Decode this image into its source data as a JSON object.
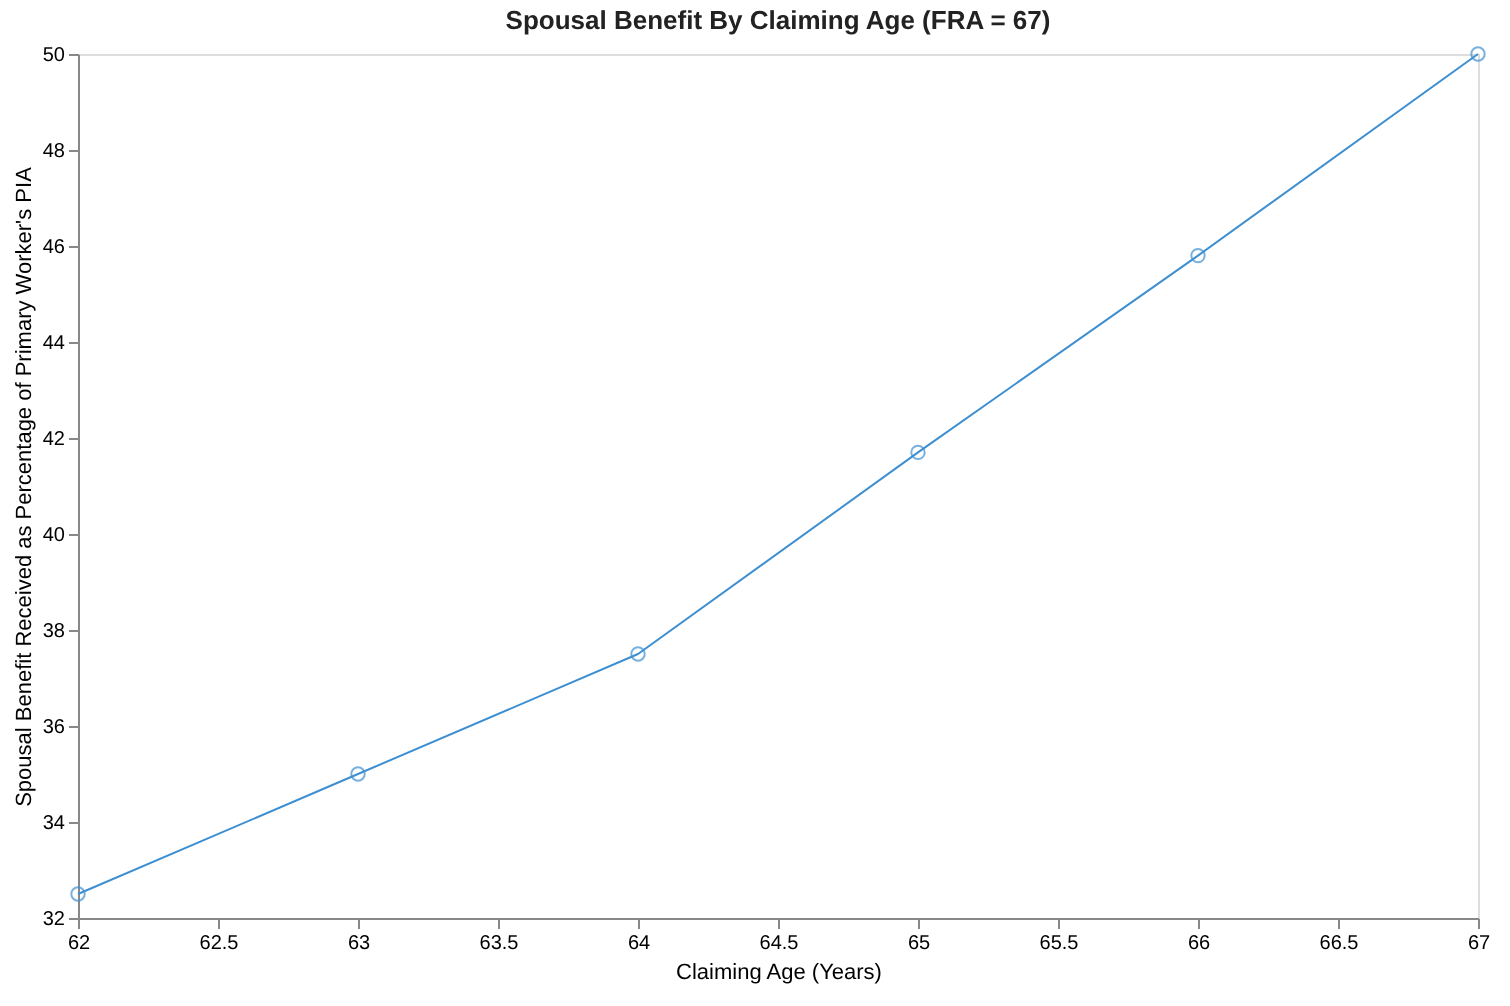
{
  "chart_data": {
    "type": "line",
    "title": "Spousal Benefit By Claiming Age (FRA = 67)",
    "xlabel": "Claiming Age (Years)",
    "ylabel": "Spousal Benefit Received as Percentage of Primary Worker's PIA",
    "x": [
      62,
      63,
      64,
      65,
      66,
      67
    ],
    "series": [
      {
        "color": "#3d8fd1",
        "values": [
          32.5,
          35,
          37.5,
          41.7,
          45.8,
          50
        ]
      }
    ],
    "xlim": [
      62,
      67
    ],
    "xticks": [
      62,
      62.5,
      63,
      63.5,
      64,
      64.5,
      65,
      65.5,
      66,
      66.5,
      67
    ],
    "ylim": [
      32,
      50
    ],
    "yticks": [
      32,
      34,
      36,
      38,
      40,
      42,
      44,
      46,
      48,
      50
    ],
    "grid": false,
    "legend": false,
    "marker": "circle",
    "line_style": "solid"
  }
}
